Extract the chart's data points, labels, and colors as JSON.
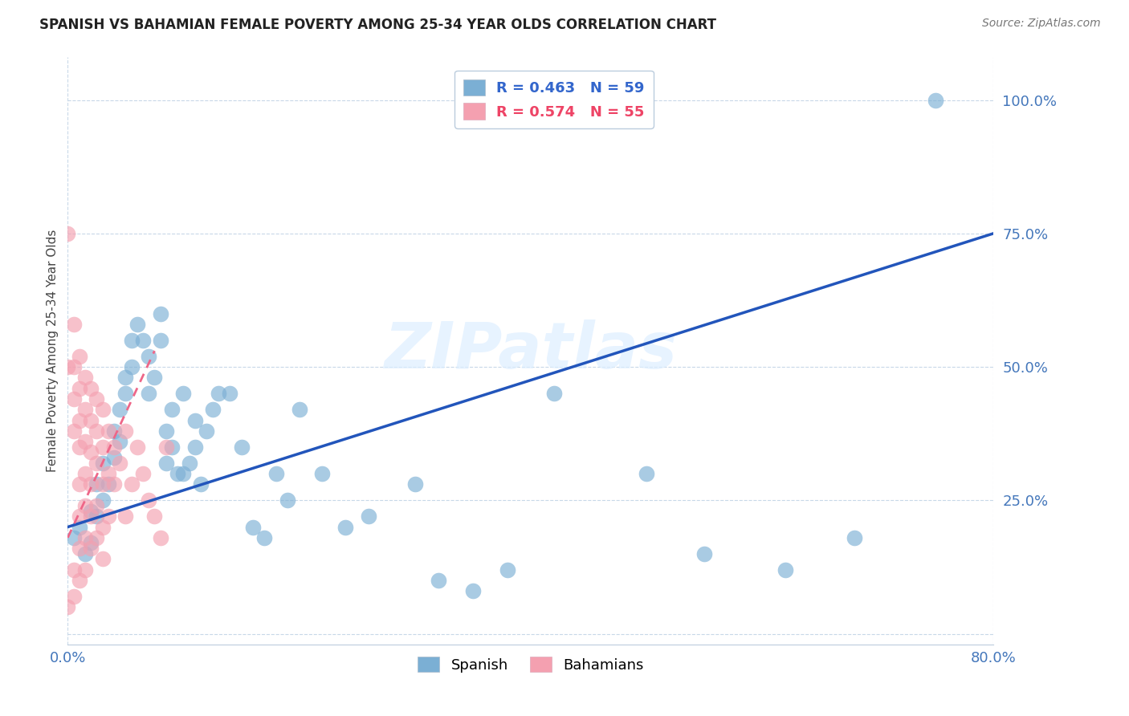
{
  "title": "SPANISH VS BAHAMIAN FEMALE POVERTY AMONG 25-34 YEAR OLDS CORRELATION CHART",
  "source": "Source: ZipAtlas.com",
  "ylabel": "Female Poverty Among 25-34 Year Olds",
  "xlim": [
    0.0,
    0.8
  ],
  "ylim": [
    -0.02,
    1.08
  ],
  "color_spanish": "#7BAFD4",
  "color_bahamian": "#F4A0B0",
  "color_spanish_line": "#2255BB",
  "color_bahamian_line": "#EE6688",
  "watermark": "ZIPatlas",
  "spanish_x": [
    0.005,
    0.01,
    0.015,
    0.02,
    0.02,
    0.025,
    0.025,
    0.03,
    0.03,
    0.035,
    0.04,
    0.04,
    0.045,
    0.045,
    0.05,
    0.05,
    0.055,
    0.055,
    0.06,
    0.065,
    0.07,
    0.07,
    0.075,
    0.08,
    0.08,
    0.085,
    0.085,
    0.09,
    0.09,
    0.095,
    0.1,
    0.1,
    0.105,
    0.11,
    0.11,
    0.115,
    0.12,
    0.125,
    0.13,
    0.14,
    0.15,
    0.16,
    0.17,
    0.18,
    0.19,
    0.2,
    0.22,
    0.24,
    0.26,
    0.3,
    0.32,
    0.35,
    0.38,
    0.42,
    0.5,
    0.55,
    0.62,
    0.68,
    0.75
  ],
  "spanish_y": [
    0.18,
    0.2,
    0.15,
    0.23,
    0.17,
    0.28,
    0.22,
    0.32,
    0.25,
    0.28,
    0.38,
    0.33,
    0.42,
    0.36,
    0.45,
    0.48,
    0.55,
    0.5,
    0.58,
    0.55,
    0.52,
    0.45,
    0.48,
    0.55,
    0.6,
    0.32,
    0.38,
    0.35,
    0.42,
    0.3,
    0.3,
    0.45,
    0.32,
    0.35,
    0.4,
    0.28,
    0.38,
    0.42,
    0.45,
    0.45,
    0.35,
    0.2,
    0.18,
    0.3,
    0.25,
    0.42,
    0.3,
    0.2,
    0.22,
    0.28,
    0.1,
    0.08,
    0.12,
    0.45,
    0.3,
    0.15,
    0.12,
    0.18,
    1.0
  ],
  "bahamian_x": [
    0.0,
    0.0,
    0.0,
    0.005,
    0.005,
    0.005,
    0.005,
    0.005,
    0.005,
    0.01,
    0.01,
    0.01,
    0.01,
    0.01,
    0.01,
    0.01,
    0.01,
    0.015,
    0.015,
    0.015,
    0.015,
    0.015,
    0.015,
    0.015,
    0.02,
    0.02,
    0.02,
    0.02,
    0.02,
    0.02,
    0.025,
    0.025,
    0.025,
    0.025,
    0.025,
    0.03,
    0.03,
    0.03,
    0.03,
    0.03,
    0.035,
    0.035,
    0.035,
    0.04,
    0.04,
    0.045,
    0.05,
    0.05,
    0.055,
    0.06,
    0.065,
    0.07,
    0.075,
    0.08,
    0.085
  ],
  "bahamian_y": [
    0.75,
    0.5,
    0.05,
    0.58,
    0.5,
    0.44,
    0.38,
    0.12,
    0.07,
    0.52,
    0.46,
    0.4,
    0.35,
    0.28,
    0.22,
    0.16,
    0.1,
    0.48,
    0.42,
    0.36,
    0.3,
    0.24,
    0.18,
    0.12,
    0.46,
    0.4,
    0.34,
    0.28,
    0.22,
    0.16,
    0.44,
    0.38,
    0.32,
    0.24,
    0.18,
    0.42,
    0.35,
    0.28,
    0.2,
    0.14,
    0.38,
    0.3,
    0.22,
    0.35,
    0.28,
    0.32,
    0.38,
    0.22,
    0.28,
    0.35,
    0.3,
    0.25,
    0.22,
    0.18,
    0.35
  ],
  "sp_trend_x": [
    0.0,
    0.8
  ],
  "sp_trend_y": [
    0.2,
    0.75
  ],
  "ba_trend_x": [
    0.0,
    0.075
  ],
  "ba_trend_y": [
    0.18,
    0.53
  ]
}
